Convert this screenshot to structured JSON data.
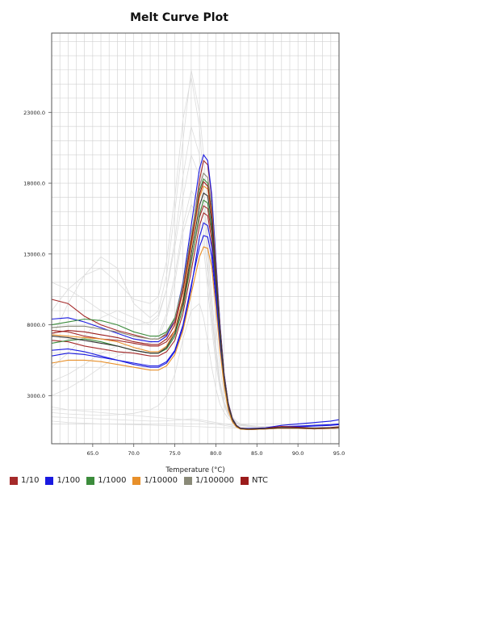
{
  "chart_data": {
    "type": "line",
    "title": "Melt Curve Plot",
    "xlabel": "Temperature (°C)",
    "ylabel": "",
    "xlim": [
      60.0,
      95.0
    ],
    "ylim": [
      -400,
      28600
    ],
    "xticks": [
      65.0,
      70.0,
      75.0,
      80.0,
      85.0,
      90.0,
      95.0
    ],
    "xtick_labels": [
      "65.0",
      "70.0",
      "75.0",
      "80.0",
      "85.0",
      "90.0",
      "95.0"
    ],
    "yticks": [
      3000.0,
      8000.0,
      13000.0,
      18000.0,
      23000.0
    ],
    "ytick_labels": [
      "3000.0",
      "8000.0",
      "13000.0",
      "18000.0",
      "23000.0"
    ],
    "grid": true,
    "legend_position": "bottom-left",
    "legend": [
      {
        "name": "1/10",
        "color": "#a52a2a"
      },
      {
        "name": "1/100",
        "color": "#1a1ae0"
      },
      {
        "name": "1/1000",
        "color": "#3c8c3c"
      },
      {
        "name": "1/10000",
        "color": "#e8902a"
      },
      {
        "name": "1/100000",
        "color": "#8a8a78"
      },
      {
        "name": "NTC",
        "color": "#9b1c1c"
      }
    ],
    "x": [
      60,
      62,
      64,
      66,
      68,
      70,
      72,
      73,
      74,
      75,
      76,
      77,
      78,
      78.5,
      79,
      79.5,
      80,
      80.5,
      81,
      81.5,
      82,
      82.5,
      83,
      84,
      86,
      88,
      90,
      92,
      94,
      95
    ],
    "series": [
      {
        "name": "1/10",
        "color": "#a52a2a",
        "values": [
          9800,
          9500,
          8600,
          8000,
          7600,
          7300,
          7000,
          7000,
          7300,
          8200,
          10500,
          14000,
          18200,
          19600,
          19300,
          17000,
          12500,
          8000,
          4500,
          2500,
          1400,
          900,
          700,
          650,
          700,
          800,
          700,
          700,
          750,
          800
        ]
      },
      {
        "name": "1/10",
        "color": "#a52a2a",
        "values": [
          7600,
          7500,
          7200,
          7000,
          6900,
          6700,
          6500,
          6500,
          6800,
          7600,
          9500,
          12500,
          15600,
          16400,
          16200,
          14500,
          11000,
          7200,
          4200,
          2300,
          1300,
          850,
          650,
          600,
          650,
          750,
          700,
          650,
          700,
          750
        ]
      },
      {
        "name": "1/10",
        "color": "#a52a2a",
        "values": [
          6900,
          6800,
          6500,
          6300,
          6100,
          6000,
          5800,
          5800,
          6100,
          6900,
          8800,
          11800,
          15000,
          15900,
          15700,
          14000,
          10700,
          7000,
          4100,
          2200,
          1250,
          800,
          650,
          600,
          640,
          700,
          680,
          650,
          680,
          720
        ]
      },
      {
        "name": "1/100",
        "color": "#1a1ae0",
        "values": [
          8400,
          8500,
          8200,
          7800,
          7400,
          7000,
          6800,
          6800,
          7200,
          8400,
          11000,
          15000,
          19000,
          20000,
          19600,
          17200,
          12700,
          8100,
          4600,
          2500,
          1400,
          900,
          700,
          680,
          720,
          900,
          1000,
          1100,
          1200,
          1300
        ]
      },
      {
        "name": "1/100",
        "color": "#1a1ae0",
        "values": [
          5800,
          6000,
          5900,
          5700,
          5500,
          5300,
          5100,
          5100,
          5400,
          6200,
          8000,
          10800,
          13500,
          14300,
          14200,
          12800,
          9800,
          6500,
          3900,
          2100,
          1200,
          800,
          650,
          650,
          700,
          800,
          850,
          900,
          950,
          1000
        ]
      },
      {
        "name": "1/100",
        "color": "#1a1ae0",
        "values": [
          6200,
          6300,
          6100,
          5800,
          5500,
          5200,
          5000,
          5000,
          5300,
          6100,
          7800,
          10600,
          14200,
          15200,
          15000,
          13500,
          10300,
          6800,
          4000,
          2200,
          1250,
          820,
          660,
          640,
          700,
          780,
          800,
          850,
          900,
          950
        ]
      },
      {
        "name": "1/1000",
        "color": "#3c8c3c",
        "values": [
          8000,
          8200,
          8400,
          8300,
          8000,
          7500,
          7200,
          7200,
          7500,
          8500,
          10800,
          14300,
          17500,
          18300,
          18000,
          16000,
          12000,
          7700,
          4400,
          2400,
          1350,
          870,
          680,
          640,
          680,
          750,
          720,
          700,
          720,
          760
        ]
      },
      {
        "name": "1/1000",
        "color": "#3c8c3c",
        "values": [
          6700,
          6900,
          7000,
          6800,
          6500,
          6200,
          6000,
          6000,
          6300,
          7200,
          9200,
          12400,
          15800,
          16800,
          16600,
          14800,
          11200,
          7300,
          4200,
          2300,
          1300,
          840,
          660,
          620,
          660,
          720,
          700,
          680,
          700,
          740
        ]
      },
      {
        "name": "1/10000",
        "color": "#e8902a",
        "values": [
          7300,
          7200,
          7100,
          7000,
          6800,
          6400,
          6100,
          6100,
          6500,
          7600,
          9900,
          13500,
          17000,
          17800,
          17600,
          15700,
          11800,
          7600,
          4300,
          2350,
          1320,
          860,
          670,
          620,
          660,
          720,
          700,
          680,
          700,
          740
        ]
      },
      {
        "name": "1/10000",
        "color": "#e8902a",
        "values": [
          5300,
          5500,
          5500,
          5400,
          5200,
          5000,
          4800,
          4800,
          5100,
          5900,
          7600,
          10200,
          12800,
          13500,
          13400,
          12100,
          9300,
          6200,
          3700,
          2000,
          1150,
          780,
          630,
          600,
          640,
          700,
          680,
          660,
          680,
          720
        ]
      },
      {
        "name": "1/100000",
        "color": "#8a8a78",
        "values": [
          7800,
          7900,
          7900,
          7700,
          7500,
          7200,
          7000,
          7000,
          7400,
          8400,
          10800,
          14300,
          17800,
          18700,
          18400,
          16400,
          12300,
          7900,
          4500,
          2450,
          1370,
          880,
          690,
          650,
          690,
          760,
          730,
          700,
          730,
          770
        ]
      },
      {
        "name": "NTC",
        "color": "#9b1c1c",
        "values": [
          7400,
          7600,
          7500,
          7300,
          7100,
          6800,
          6600,
          6600,
          7000,
          8000,
          10400,
          13800,
          17200,
          18100,
          17800,
          15900,
          11900,
          7700,
          4400,
          2400,
          1350,
          870,
          680,
          640,
          690,
          820,
          760,
          700,
          720,
          760
        ]
      },
      {
        "name": "NTC",
        "color": "#333333",
        "values": [
          7200,
          7100,
          6900,
          6700,
          6500,
          6200,
          6000,
          6000,
          6400,
          7400,
          9600,
          13000,
          16400,
          17300,
          17100,
          15300,
          11500,
          7500,
          4300,
          2350,
          1330,
          860,
          670,
          630,
          670,
          730,
          710,
          690,
          710,
          750
        ]
      }
    ],
    "background_traces": [
      [
        2200,
        2000,
        1900,
        1800,
        1700,
        1600,
        1500,
        1450,
        1400,
        1350,
        1300,
        1250,
        1200,
        1150,
        1100,
        1050,
        1000,
        950,
        900,
        850,
        800,
        780,
        760,
        740,
        720,
        700,
        690,
        680,
        670,
        660
      ],
      [
        1200,
        1100,
        1050,
        1000,
        980,
        950,
        920,
        900,
        880,
        860,
        840,
        820,
        800,
        790,
        780,
        770,
        760,
        750,
        740,
        730,
        720,
        710,
        700,
        690,
        680,
        670,
        660,
        650,
        640,
        630
      ],
      [
        7000,
        9500,
        11500,
        12800,
        12000,
        9500,
        8500,
        9000,
        11500,
        16000,
        21000,
        26000,
        23000,
        20000,
        16000,
        12000,
        8000,
        5000,
        3000,
        2000,
        1500,
        1200,
        1000,
        900,
        800,
        760,
        720,
        700,
        680,
        660
      ],
      [
        9000,
        10500,
        11500,
        12000,
        11000,
        9800,
        9500,
        10000,
        12500,
        17000,
        22500,
        25500,
        22000,
        18000,
        14000,
        10000,
        6500,
        4000,
        2600,
        1800,
        1400,
        1100,
        950,
        850,
        780,
        740,
        700,
        680,
        660,
        650
      ],
      [
        5000,
        6000,
        7200,
        8500,
        9000,
        8500,
        8000,
        8500,
        10500,
        14000,
        18500,
        22000,
        20000,
        17000,
        13500,
        10000,
        6500,
        4000,
        2500,
        1700,
        1300,
        1050,
        900,
        820,
        760,
        720,
        690,
        670,
        650,
        640
      ],
      [
        3000,
        3500,
        4200,
        5000,
        5800,
        6200,
        6800,
        7300,
        8800,
        11500,
        15000,
        17500,
        16500,
        14500,
        11500,
        8500,
        5800,
        3800,
        2500,
        1700,
        1300,
        1100,
        950,
        850,
        780,
        740,
        700,
        680,
        660,
        650
      ],
      [
        1800,
        1700,
        1650,
        1600,
        1650,
        1750,
        2000,
        2300,
        3000,
        4500,
        7000,
        9000,
        9500,
        8500,
        6800,
        5000,
        3500,
        2400,
        1800,
        1400,
        1200,
        1050,
        950,
        870,
        800,
        760,
        720,
        700,
        680,
        670
      ],
      [
        11000,
        10500,
        9800,
        9000,
        8400,
        8000,
        8200,
        8700,
        10500,
        13500,
        17000,
        20000,
        18500,
        16000,
        12500,
        9000,
        6000,
        3800,
        2400,
        1600,
        1250,
        1050,
        900,
        820,
        760,
        720,
        700,
        680,
        660,
        650
      ],
      [
        1500,
        1450,
        1400,
        1350,
        1300,
        1250,
        1200,
        1200,
        1220,
        1250,
        1300,
        1350,
        1300,
        1250,
        1200,
        1150,
        1100,
        1050,
        1000,
        950,
        900,
        880,
        870,
        850,
        820,
        800,
        780,
        770,
        760,
        750
      ],
      [
        4000,
        4500,
        5200,
        6000,
        6500,
        6600,
        6700,
        7000,
        8500,
        11000,
        14500,
        16500,
        15500,
        13500,
        10500,
        7800,
        5300,
        3500,
        2300,
        1600,
        1250,
        1050,
        920,
        840,
        780,
        740,
        710,
        690,
        670,
        660
      ]
    ]
  }
}
